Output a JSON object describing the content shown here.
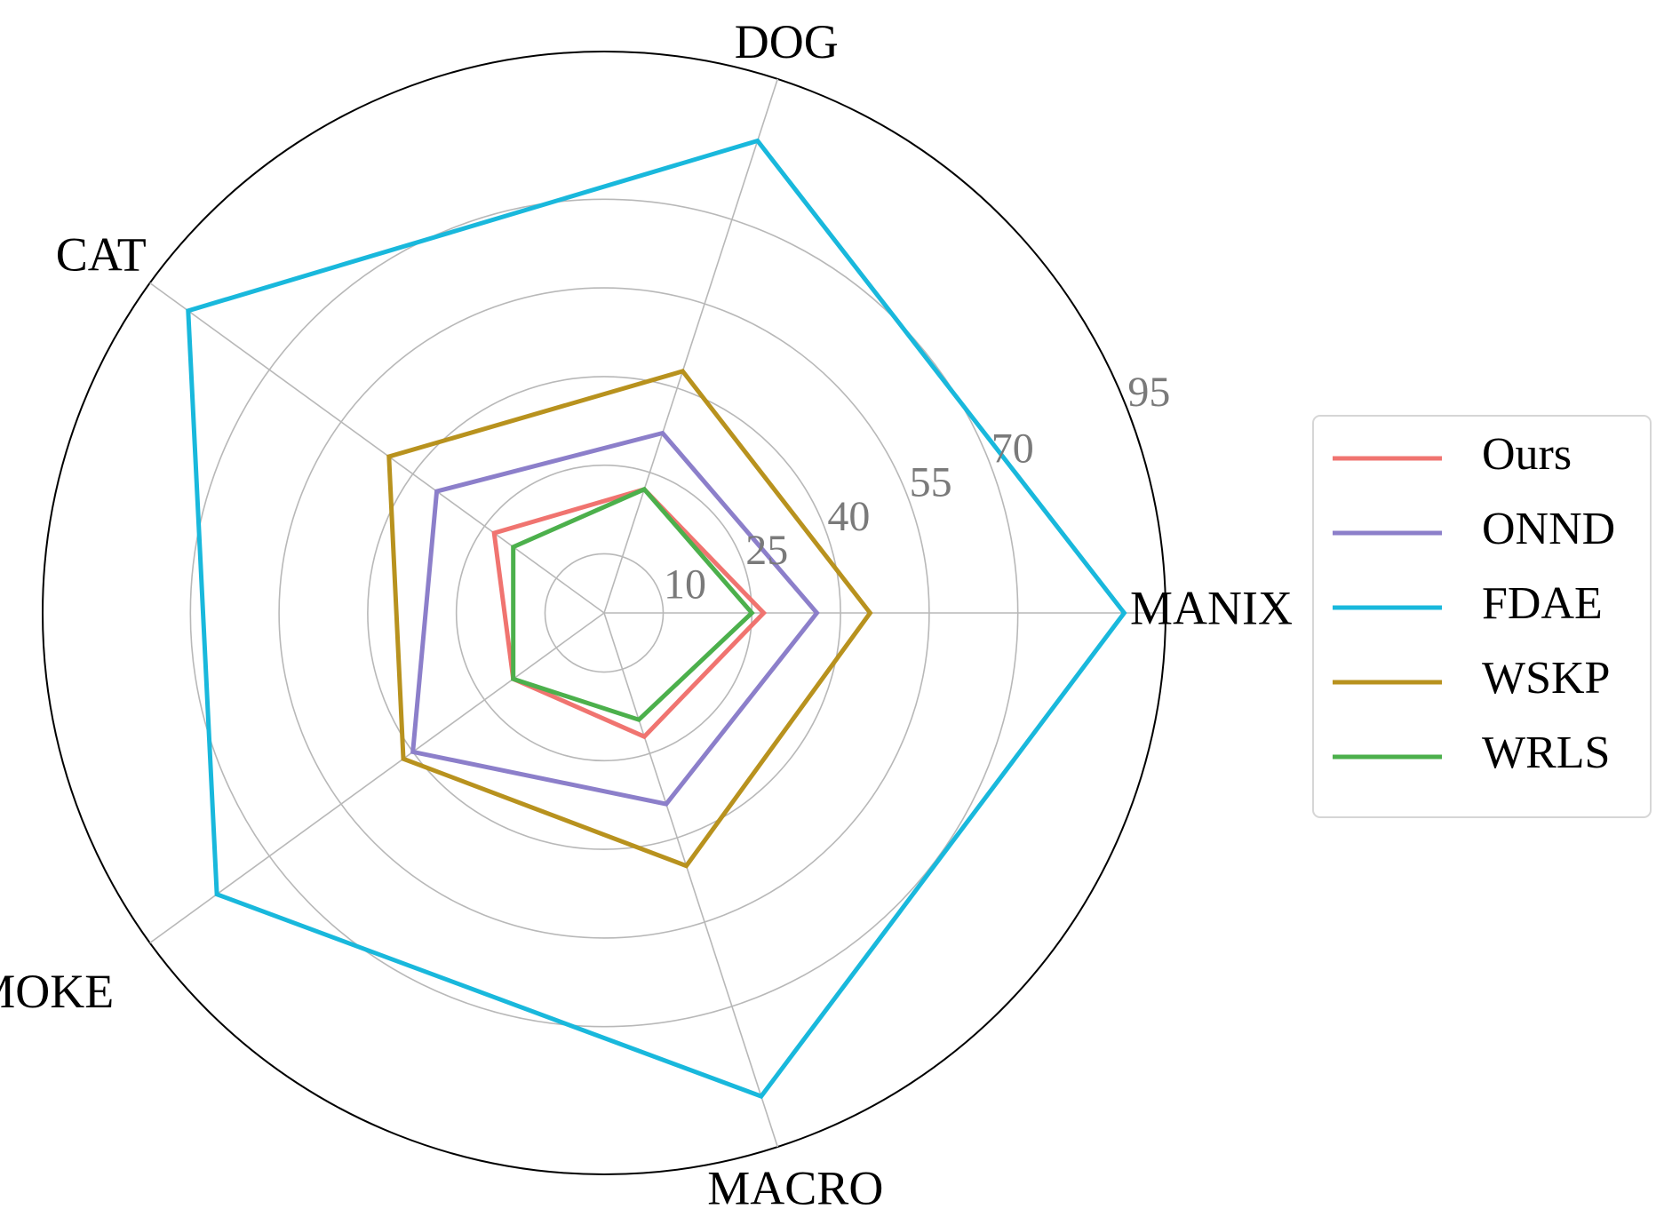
{
  "chart_data": {
    "type": "radar",
    "axes": [
      "MANIX",
      "DOG",
      "CAT",
      "SMOKE",
      "MACRO"
    ],
    "radial_ticks": [
      10,
      25,
      40,
      55,
      70,
      95
    ],
    "rlim": [
      0,
      95
    ],
    "grid": true,
    "legend_placement": "right",
    "series": [
      {
        "name": "Ours",
        "color": "#f07470",
        "values": [
          27,
          22,
          23,
          19,
          22
        ]
      },
      {
        "name": "ONND",
        "color": "#8c7fca",
        "values": [
          36,
          32,
          35,
          40,
          34
        ]
      },
      {
        "name": "FDAE",
        "color": "#19b8dc",
        "values": [
          88,
          84,
          87,
          81,
          86
        ]
      },
      {
        "name": "WSKP",
        "color": "#b8921e",
        "values": [
          45,
          43,
          45,
          42,
          45
        ]
      },
      {
        "name": "WRLS",
        "color": "#4cb04c",
        "values": [
          25,
          22,
          19,
          19,
          19
        ]
      }
    ]
  }
}
